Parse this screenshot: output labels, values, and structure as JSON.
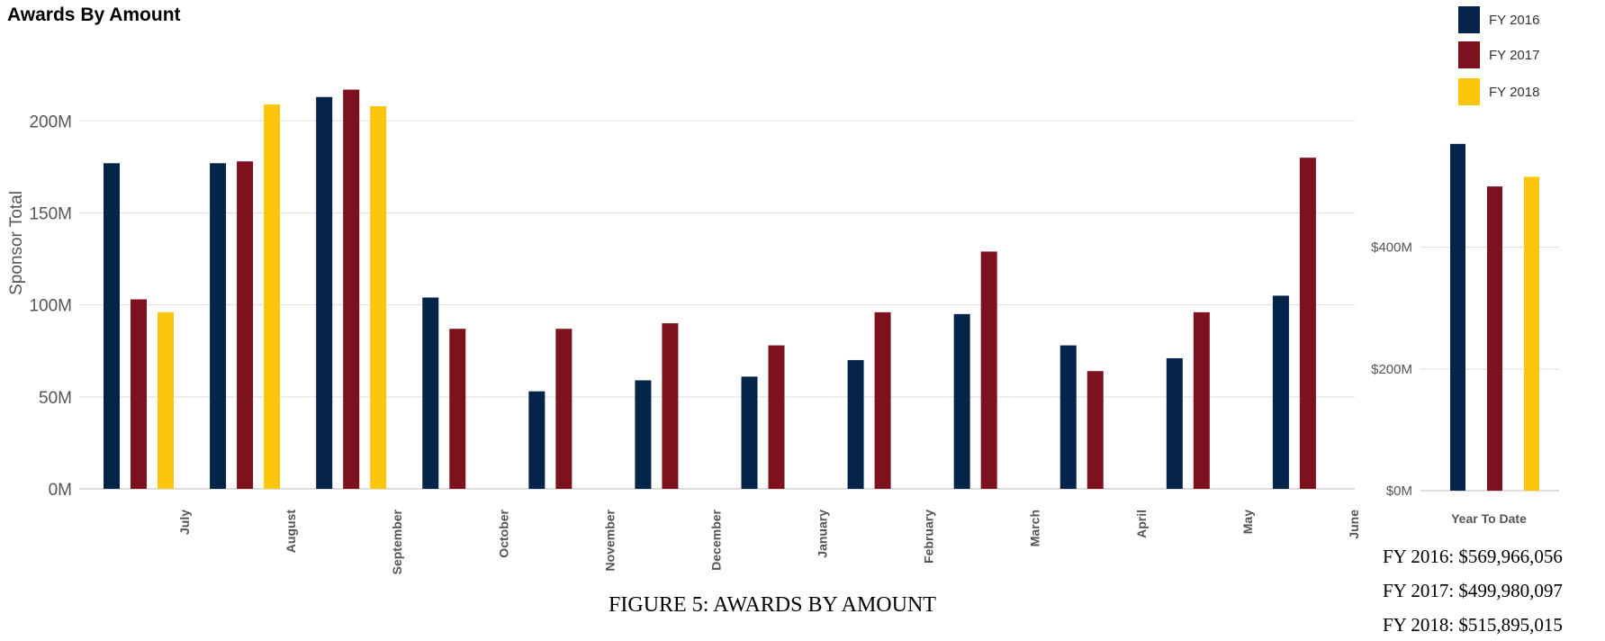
{
  "chart_data": [
    {
      "type": "bar",
      "title": "Awards By Amount",
      "xlabel": "",
      "ylabel": "Sponsor Total",
      "ylim": [
        0,
        230000000
      ],
      "yticks": [
        0,
        50000000,
        100000000,
        150000000,
        200000000
      ],
      "ytick_labels": [
        "0M",
        "50M",
        "100M",
        "150M",
        "200M"
      ],
      "grid": true,
      "categories": [
        "July",
        "August",
        "September",
        "October",
        "November",
        "December",
        "January",
        "February",
        "March",
        "April",
        "May",
        "June"
      ],
      "series": [
        {
          "name": "FY 2016",
          "values": [
            177000000,
            177000000,
            213000000,
            104000000,
            53000000,
            59000000,
            61000000,
            70000000,
            95000000,
            78000000,
            71000000,
            105000000
          ]
        },
        {
          "name": "FY 2017",
          "values": [
            103000000,
            178000000,
            217000000,
            87000000,
            87000000,
            90000000,
            78000000,
            96000000,
            129000000,
            64000000,
            96000000,
            180000000
          ]
        },
        {
          "name": "FY 2018",
          "values": [
            96000000,
            209000000,
            208000000,
            null,
            null,
            null,
            null,
            null,
            null,
            null,
            null,
            null
          ]
        }
      ]
    },
    {
      "type": "bar",
      "title": "",
      "xlabel": "",
      "ylabel": "",
      "ylim": [
        0,
        620000000
      ],
      "yticks": [
        0,
        200000000,
        400000000
      ],
      "ytick_labels": [
        "$0M",
        "$200M",
        "$400M"
      ],
      "grid": true,
      "categories": [
        "Year To Date"
      ],
      "series": [
        {
          "name": "FY 2016",
          "values": [
            569966056
          ]
        },
        {
          "name": "FY 2017",
          "values": [
            499980097
          ]
        },
        {
          "name": "FY 2018",
          "values": [
            515895015
          ]
        }
      ]
    }
  ],
  "legend": {
    "items": [
      {
        "label": "FY 2016",
        "color": "#04244a"
      },
      {
        "label": "FY 2017",
        "color": "#7d111e"
      },
      {
        "label": "FY 2018",
        "color": "#fcc70b"
      }
    ],
    "placement": "top-right"
  },
  "colors": {
    "grid": "#dddddd",
    "axis": "#bbbbbb",
    "text": "#555555"
  },
  "totals": [
    "FY 2016: $569,966,056",
    "FY 2017: $499,980,097",
    "FY 2018: $515,895,015"
  ],
  "caption": "FIGURE 5: AWARDS BY AMOUNT"
}
